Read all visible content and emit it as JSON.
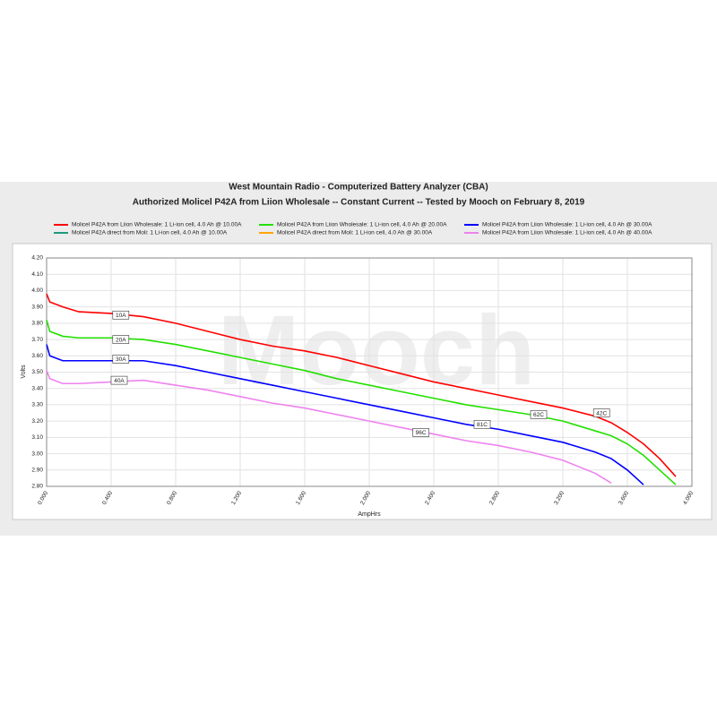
{
  "chart_data": {
    "type": "line",
    "title": "West Mountain Radio - Computerized Battery Analyzer (CBA)",
    "subtitle": "Authorized Molicel P42A from Liion Wholesale -- Constant Current -- Tested by Mooch on February 8, 2019",
    "watermark": "Mooch",
    "x_label": "AmpHrs",
    "y_label": "Volts",
    "x": [
      0,
      0.02,
      0.1,
      0.2,
      0.4,
      0.6,
      0.8,
      1.0,
      1.2,
      1.4,
      1.6,
      1.8,
      2.0,
      2.2,
      2.4,
      2.6,
      2.8,
      3.0,
      3.2,
      3.4,
      3.5,
      3.6,
      3.7,
      3.8,
      3.9
    ],
    "series": [
      {
        "name": "Molicel P42A from Liion Wholesale: 1 Li-ion cell, 4.0 Ah @ 10.00A",
        "color": "#ff0000",
        "values": [
          3.98,
          3.93,
          3.9,
          3.87,
          3.86,
          3.84,
          3.8,
          3.75,
          3.7,
          3.66,
          3.63,
          3.59,
          3.54,
          3.49,
          3.44,
          3.4,
          3.36,
          3.32,
          3.28,
          3.23,
          3.19,
          3.13,
          3.06,
          2.97,
          2.86
        ]
      },
      {
        "name": "Molicel P42A from Liion Wholesale: 1 Li-ion cell, 4.0 Ah @ 20.00A",
        "color": "#22e000",
        "values": [
          3.82,
          3.75,
          3.72,
          3.71,
          3.71,
          3.7,
          3.67,
          3.63,
          3.59,
          3.55,
          3.51,
          3.46,
          3.42,
          3.38,
          3.34,
          3.3,
          3.27,
          3.24,
          3.2,
          3.14,
          3.11,
          3.06,
          2.99,
          2.9,
          2.81
        ]
      },
      {
        "name": "Molicel P42A from Liion Wholesale: 1 Li-ion cell, 4.0 Ah @ 30.00A",
        "color": "#0000ff",
        "values": [
          3.67,
          3.6,
          3.57,
          3.57,
          3.57,
          3.57,
          3.54,
          3.5,
          3.46,
          3.42,
          3.38,
          3.34,
          3.3,
          3.26,
          3.22,
          3.18,
          3.15,
          3.11,
          3.07,
          3.01,
          2.97,
          2.9,
          2.81,
          null,
          null
        ]
      },
      {
        "name": "Molicel P42A direct from Moli: 1 Li-ion cell, 4.0 Ah @ 10.00A",
        "color": "#1f9a7a",
        "values": [
          null,
          null,
          null,
          null,
          null,
          null,
          null,
          null,
          null,
          null,
          null,
          null,
          null,
          null,
          null,
          null,
          null,
          null,
          null,
          null,
          null,
          null,
          null,
          null,
          null
        ]
      },
      {
        "name": "Molicel P42A direct from Moli: 1 Li-ion cell, 4.0 Ah @ 30.00A",
        "color": "#ffa500",
        "values": [
          null,
          null,
          null,
          null,
          null,
          null,
          null,
          null,
          null,
          null,
          null,
          null,
          null,
          null,
          null,
          null,
          null,
          null,
          null,
          null,
          null,
          null,
          null,
          null,
          null
        ]
      },
      {
        "name": "Molicel P42A from Liion Wholesale: 1 Li-ion cell, 4.0 Ah @ 40.00A",
        "color": "#ee82ee",
        "values": [
          3.51,
          3.46,
          3.43,
          3.43,
          3.44,
          3.45,
          3.42,
          3.39,
          3.35,
          3.31,
          3.28,
          3.24,
          3.2,
          3.16,
          3.12,
          3.08,
          3.05,
          3.01,
          2.96,
          2.88,
          2.82,
          null,
          null,
          null,
          null
        ]
      }
    ],
    "annotations": [
      {
        "text": "10A",
        "x": 0.46,
        "y": 3.85
      },
      {
        "text": "20A",
        "x": 0.46,
        "y": 3.7
      },
      {
        "text": "30A",
        "x": 0.46,
        "y": 3.58
      },
      {
        "text": "40A",
        "x": 0.45,
        "y": 3.45
      },
      {
        "text": "96C",
        "x": 2.32,
        "y": 3.13
      },
      {
        "text": "81C",
        "x": 2.7,
        "y": 3.18
      },
      {
        "text": "62C",
        "x": 3.05,
        "y": 3.24
      },
      {
        "text": "42C",
        "x": 3.44,
        "y": 3.25
      }
    ],
    "xlim": [
      0,
      4
    ],
    "xticks": [
      {
        "value": 0,
        "label": "0.000"
      },
      {
        "value": 0.4,
        "label": "0.400"
      },
      {
        "value": 0.8,
        "label": "0.800"
      },
      {
        "value": 1.2,
        "label": "1.200"
      },
      {
        "value": 1.6,
        "label": "1.600"
      },
      {
        "value": 2.0,
        "label": "2.000"
      },
      {
        "value": 2.4,
        "label": "2.400"
      },
      {
        "value": 2.8,
        "label": "2.800"
      },
      {
        "value": 3.2,
        "label": "3.200"
      },
      {
        "value": 3.6,
        "label": "3.600"
      },
      {
        "value": 4.0,
        "label": "4.000"
      }
    ],
    "ylim": [
      2.8,
      4.2
    ],
    "yticks": [
      {
        "value": 2.8,
        "label": "2.80"
      },
      {
        "value": 2.9,
        "label": "2.90"
      },
      {
        "value": 3.0,
        "label": "3.00"
      },
      {
        "value": 3.1,
        "label": "3.10"
      },
      {
        "value": 3.2,
        "label": "3.20"
      },
      {
        "value": 3.3,
        "label": "3.30"
      },
      {
        "value": 3.4,
        "label": "3.40"
      },
      {
        "value": 3.5,
        "label": "3.50"
      },
      {
        "value": 3.6,
        "label": "3.60"
      },
      {
        "value": 3.7,
        "label": "3.70"
      },
      {
        "value": 3.8,
        "label": "3.80"
      },
      {
        "value": 3.9,
        "label": "3.90"
      },
      {
        "value": 4.0,
        "label": "4.00"
      },
      {
        "value": 4.1,
        "label": "4.10"
      },
      {
        "value": 4.2,
        "label": "4.20"
      }
    ],
    "grid": true
  }
}
